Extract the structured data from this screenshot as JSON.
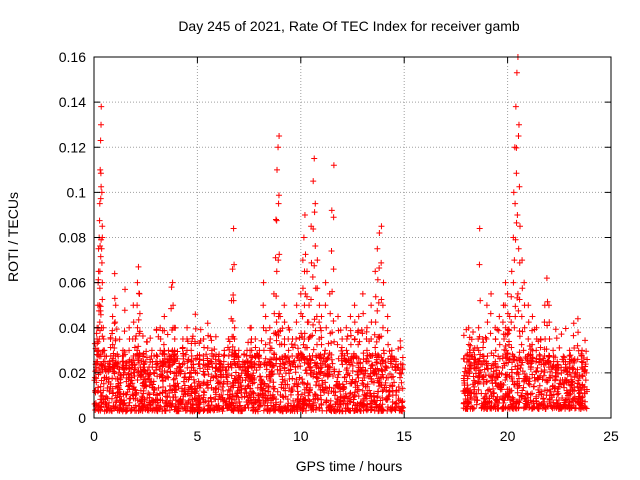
{
  "chart_data": {
    "type": "scatter",
    "title": "Day 245 of 2021, Rate Of TEC Index for receiver gamb",
    "xlabel": "GPS time / hours",
    "ylabel": "ROTI / TECUs",
    "xlim": [
      0,
      25
    ],
    "ylim": [
      0,
      0.16
    ],
    "xticks": [
      0,
      5,
      10,
      15,
      20,
      25
    ],
    "xtick_labels": [
      "0",
      "5",
      "10",
      "15",
      "20",
      "25"
    ],
    "yticks": [
      0,
      0.02,
      0.04,
      0.06,
      0.08,
      0.1,
      0.12,
      0.14,
      0.16
    ],
    "ytick_labels": [
      "0",
      "0.02",
      "0.04",
      "0.06",
      "0.08",
      "0.1",
      "0.12",
      "0.14",
      "0.16"
    ],
    "grid": true,
    "marker": "+",
    "color": "#ff0000",
    "series": [
      {
        "name": "ROTI",
        "points": [
          [
            0.05,
            0.012
          ],
          [
            0.1,
            0.025
          ],
          [
            0.15,
            0.04
          ],
          [
            0.2,
            0.06
          ],
          [
            0.22,
            0.075
          ],
          [
            0.25,
            0.08
          ],
          [
            0.28,
            0.095
          ],
          [
            0.3,
            0.11
          ],
          [
            0.32,
            0.123
          ],
          [
            0.34,
            0.13
          ],
          [
            0.35,
            0.138
          ],
          [
            0.38,
            0.1
          ],
          [
            0.4,
            0.085
          ],
          [
            0.45,
            0.04
          ],
          [
            0.5,
            0.03
          ],
          [
            0.6,
            0.018
          ],
          [
            0.7,
            0.022
          ],
          [
            0.8,
            0.035
          ],
          [
            0.9,
            0.045
          ],
          [
            1.0,
            0.064
          ],
          [
            1.05,
            0.05
          ],
          [
            1.2,
            0.02
          ],
          [
            1.4,
            0.03
          ],
          [
            1.5,
            0.057
          ],
          [
            1.7,
            0.04
          ],
          [
            1.9,
            0.05
          ],
          [
            2.0,
            0.035
          ],
          [
            2.1,
            0.06
          ],
          [
            2.15,
            0.067
          ],
          [
            2.2,
            0.055
          ],
          [
            2.4,
            0.025
          ],
          [
            2.6,
            0.02
          ],
          [
            2.8,
            0.03
          ],
          [
            3.0,
            0.025
          ],
          [
            3.2,
            0.04
          ],
          [
            3.4,
            0.045
          ],
          [
            3.6,
            0.03
          ],
          [
            3.75,
            0.058
          ],
          [
            3.8,
            0.06
          ],
          [
            3.9,
            0.04
          ],
          [
            4.1,
            0.02
          ],
          [
            4.3,
            0.035
          ],
          [
            4.5,
            0.04
          ],
          [
            4.7,
            0.03
          ],
          [
            4.9,
            0.046
          ],
          [
            5.1,
            0.028
          ],
          [
            5.3,
            0.035
          ],
          [
            5.5,
            0.042
          ],
          [
            5.7,
            0.03
          ],
          [
            5.9,
            0.028
          ],
          [
            6.1,
            0.025
          ],
          [
            6.3,
            0.03
          ],
          [
            6.5,
            0.035
          ],
          [
            6.65,
            0.052
          ],
          [
            6.7,
            0.066
          ],
          [
            6.75,
            0.084
          ],
          [
            6.8,
            0.04
          ],
          [
            7.0,
            0.03
          ],
          [
            7.2,
            0.025
          ],
          [
            7.4,
            0.03
          ],
          [
            7.6,
            0.04
          ],
          [
            7.8,
            0.035
          ],
          [
            8.0,
            0.03
          ],
          [
            8.2,
            0.06
          ],
          [
            8.3,
            0.045
          ],
          [
            8.5,
            0.04
          ],
          [
            8.7,
            0.055
          ],
          [
            8.8,
            0.088
          ],
          [
            8.85,
            0.11
          ],
          [
            8.9,
            0.12
          ],
          [
            8.95,
            0.125
          ],
          [
            9.0,
            0.045
          ],
          [
            9.2,
            0.05
          ],
          [
            9.4,
            0.04
          ],
          [
            9.6,
            0.035
          ],
          [
            9.8,
            0.05
          ],
          [
            10.0,
            0.055
          ],
          [
            10.1,
            0.07
          ],
          [
            10.15,
            0.08
          ],
          [
            10.2,
            0.09
          ],
          [
            10.3,
            0.065
          ],
          [
            10.4,
            0.05
          ],
          [
            10.5,
            0.085
          ],
          [
            10.6,
            0.105
          ],
          [
            10.65,
            0.115
          ],
          [
            10.7,
            0.095
          ],
          [
            10.8,
            0.07
          ],
          [
            10.9,
            0.05
          ],
          [
            11.0,
            0.045
          ],
          [
            11.2,
            0.06
          ],
          [
            11.4,
            0.055
          ],
          [
            11.5,
            0.092
          ],
          [
            11.6,
            0.112
          ],
          [
            11.8,
            0.045
          ],
          [
            12.0,
            0.035
          ],
          [
            12.2,
            0.04
          ],
          [
            12.4,
            0.045
          ],
          [
            12.6,
            0.05
          ],
          [
            12.8,
            0.045
          ],
          [
            13.0,
            0.055
          ],
          [
            13.2,
            0.04
          ],
          [
            13.4,
            0.05
          ],
          [
            13.6,
            0.065
          ],
          [
            13.7,
            0.075
          ],
          [
            13.8,
            0.082
          ],
          [
            13.9,
            0.085
          ],
          [
            14.0,
            0.06
          ],
          [
            14.2,
            0.045
          ],
          [
            14.4,
            0.03
          ],
          [
            14.6,
            0.025
          ],
          [
            14.8,
            0.02
          ],
          [
            17.9,
            0.012
          ],
          [
            18.0,
            0.02
          ],
          [
            18.2,
            0.032
          ],
          [
            18.4,
            0.028
          ],
          [
            18.6,
            0.04
          ],
          [
            18.65,
            0.084
          ],
          [
            18.8,
            0.035
          ],
          [
            19.0,
            0.05
          ],
          [
            19.2,
            0.055
          ],
          [
            19.4,
            0.04
          ],
          [
            19.6,
            0.045
          ],
          [
            19.8,
            0.05
          ],
          [
            19.9,
            0.06
          ],
          [
            20.0,
            0.055
          ],
          [
            20.1,
            0.045
          ],
          [
            20.2,
            0.065
          ],
          [
            20.3,
            0.1
          ],
          [
            20.35,
            0.12
          ],
          [
            20.4,
            0.138
          ],
          [
            20.45,
            0.153
          ],
          [
            20.5,
            0.16
          ],
          [
            20.55,
            0.13
          ],
          [
            20.6,
            0.085
          ],
          [
            20.7,
            0.07
          ],
          [
            20.8,
            0.06
          ],
          [
            21.0,
            0.05
          ],
          [
            21.2,
            0.045
          ],
          [
            21.4,
            0.04
          ],
          [
            21.6,
            0.035
          ],
          [
            21.8,
            0.05
          ],
          [
            21.9,
            0.062
          ],
          [
            22.0,
            0.05
          ],
          [
            22.2,
            0.03
          ],
          [
            22.4,
            0.025
          ],
          [
            22.6,
            0.02
          ],
          [
            22.8,
            0.025
          ],
          [
            23.0,
            0.03
          ],
          [
            23.2,
            0.042
          ],
          [
            23.4,
            0.044
          ],
          [
            23.6,
            0.03
          ],
          [
            23.8,
            0.02
          ]
        ],
        "bands": [
          {
            "from": 0.0,
            "to": 14.95,
            "low": 0.003,
            "high": 0.022
          },
          {
            "from": 17.85,
            "to": 23.85,
            "low": 0.004,
            "high": 0.022
          }
        ]
      }
    ]
  }
}
